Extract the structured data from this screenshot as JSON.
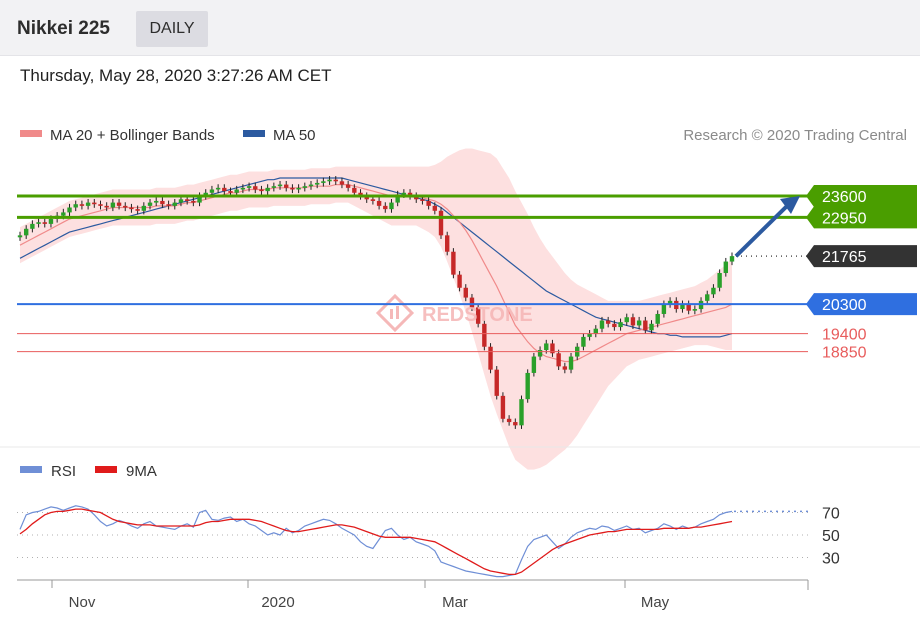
{
  "header": {
    "title": "Nikkei 225",
    "period": "DAILY",
    "datetime": "Thursday, May 28, 2020 3:27:26 AM CET"
  },
  "legend": {
    "ma20": "MA 20 + Bollinger Bands",
    "ma50": "MA 50",
    "credit": "Research © 2020 Trading Central",
    "watermark": "REDSTONE",
    "rsi": "RSI",
    "rsi_ma": "9MA"
  },
  "colors": {
    "ma20": "#f08a8a",
    "ma50": "#2c5aa0",
    "band": "#fde0e0",
    "resistance": "#4a9e00",
    "support_blue": "#2f6fe0",
    "support_red": "#e85c5c",
    "current": "#333333",
    "rsi": "#6f8fd6",
    "rsi_ma": "#e01b1b",
    "arrow": "#2c5aa0"
  },
  "chart_data": {
    "type": "line",
    "x_ticks": [
      "Nov",
      "2020",
      "Mar",
      "May"
    ],
    "levels": [
      {
        "value": 23600,
        "label": "23600",
        "kind": "resistance"
      },
      {
        "value": 22950,
        "label": "22950",
        "kind": "resistance"
      },
      {
        "value": 21765,
        "label": "21765",
        "kind": "current"
      },
      {
        "value": 20300,
        "label": "20300",
        "kind": "support_blue"
      },
      {
        "value": 19400,
        "label": "19400",
        "kind": "support_red"
      },
      {
        "value": 18850,
        "label": "18850",
        "kind": "support_red"
      }
    ],
    "price_range": [
      16000,
      24700
    ],
    "price_close": [
      22400,
      22600,
      22750,
      22800,
      22750,
      22900,
      23000,
      23100,
      23250,
      23350,
      23300,
      23400,
      23350,
      23300,
      23250,
      23400,
      23300,
      23250,
      23200,
      23150,
      23300,
      23400,
      23450,
      23350,
      23300,
      23400,
      23500,
      23450,
      23400,
      23600,
      23700,
      23800,
      23850,
      23750,
      23700,
      23800,
      23850,
      23900,
      23800,
      23750,
      23850,
      23900,
      23950,
      23850,
      23800,
      23850,
      23900,
      23950,
      24000,
      24050,
      24100,
      24050,
      23950,
      23850,
      23700,
      23600,
      23500,
      23450,
      23300,
      23200,
      23400,
      23650,
      23700,
      23600,
      23500,
      23450,
      23300,
      23150,
      22400,
      21900,
      21200,
      20800,
      20500,
      20200,
      19700,
      19000,
      18300,
      17500,
      16800,
      16700,
      16600,
      17400,
      18200,
      18700,
      18900,
      19100,
      18800,
      18400,
      18300,
      18700,
      19000,
      19300,
      19400,
      19550,
      19800,
      19700,
      19600,
      19750,
      19900,
      19650,
      19800,
      19500,
      19700,
      20000,
      20300,
      20400,
      20150,
      20300,
      20100,
      20150,
      20400,
      20600,
      20800,
      21250,
      21600,
      21765
    ],
    "ma20": [
      22100,
      22200,
      22300,
      22400,
      22500,
      22600,
      22700,
      22800,
      22900,
      22950,
      23000,
      23050,
      23100,
      23150,
      23200,
      23250,
      23250,
      23250,
      23250,
      23250,
      23250,
      23250,
      23300,
      23300,
      23300,
      23300,
      23350,
      23400,
      23400,
      23450,
      23500,
      23550,
      23600,
      23650,
      23700,
      23700,
      23750,
      23800,
      23800,
      23800,
      23800,
      23850,
      23850,
      23850,
      23850,
      23850,
      23850,
      23900,
      23900,
      23900,
      23900,
      23950,
      23950,
      23950,
      23900,
      23850,
      23800,
      23750,
      23700,
      23650,
      23600,
      23600,
      23600,
      23600,
      23600,
      23550,
      23500,
      23450,
      23350,
      23200,
      23000,
      22800,
      22550,
      22250,
      21900,
      21550,
      21200,
      20850,
      20450,
      20050,
      19650,
      19400,
      19150,
      18950,
      18800,
      18700,
      18650,
      18600,
      18550,
      18550,
      18600,
      18700,
      18800,
      18900,
      19000,
      19100,
      19200,
      19300,
      19400,
      19450,
      19500,
      19550,
      19600,
      19650,
      19700,
      19750,
      19800,
      19850,
      19900,
      19950,
      20000,
      20050,
      20100,
      20150,
      20200,
      20300
    ],
    "ma50": [
      21700,
      21800,
      21900,
      22000,
      22100,
      22200,
      22300,
      22400,
      22500,
      22550,
      22600,
      22650,
      22700,
      22750,
      22800,
      22850,
      22900,
      22950,
      23000,
      23050,
      23100,
      23150,
      23200,
      23250,
      23300,
      23350,
      23400,
      23450,
      23500,
      23550,
      23600,
      23650,
      23700,
      23750,
      23800,
      23850,
      23900,
      23950,
      24000,
      24050,
      24100,
      24100,
      24150,
      24150,
      24150,
      24150,
      24150,
      24150,
      24150,
      24150,
      24150,
      24150,
      24150,
      24100,
      24050,
      24000,
      23950,
      23900,
      23850,
      23800,
      23750,
      23700,
      23650,
      23600,
      23550,
      23500,
      23450,
      23350,
      23250,
      23100,
      22950,
      22800,
      22650,
      22500,
      22350,
      22200,
      22050,
      21900,
      21750,
      21600,
      21450,
      21300,
      21150,
      21000,
      20850,
      20700,
      20600,
      20500,
      20400,
      20300,
      20200,
      20100,
      20000,
      19900,
      19850,
      19800,
      19750,
      19700,
      19650,
      19600,
      19550,
      19500,
      19450,
      19400,
      19400,
      19350,
      19350,
      19300,
      19300,
      19300,
      19300,
      19300,
      19300,
      19300,
      19350,
      19400
    ],
    "band_width": [
      550,
      550,
      550,
      550,
      550,
      550,
      550,
      550,
      550,
      550,
      550,
      550,
      550,
      550,
      550,
      550,
      550,
      550,
      550,
      550,
      550,
      550,
      550,
      550,
      550,
      550,
      550,
      550,
      550,
      550,
      550,
      550,
      550,
      550,
      550,
      550,
      550,
      550,
      550,
      550,
      550,
      550,
      550,
      550,
      550,
      550,
      550,
      550,
      550,
      550,
      550,
      550,
      550,
      550,
      600,
      650,
      700,
      750,
      800,
      850,
      900,
      900,
      900,
      900,
      900,
      950,
      1000,
      1100,
      1300,
      1600,
      1900,
      2200,
      2500,
      2800,
      3100,
      3400,
      3700,
      3900,
      4000,
      4100,
      4100,
      4000,
      3900,
      3700,
      3500,
      3300,
      3100,
      2900,
      2700,
      2500,
      2300,
      2100,
      1900,
      1700,
      1500,
      1300,
      1200,
      1100,
      1000,
      950,
      900,
      900,
      900,
      900,
      900,
      900,
      900,
      900,
      900,
      900,
      950,
      1000,
      1100,
      1200,
      1300,
      1400
    ],
    "rsi_axis_ticks": [
      70,
      50,
      30
    ],
    "rsi_range": [
      10,
      90
    ],
    "rsi": [
      55,
      68,
      70,
      71,
      73,
      75,
      74,
      72,
      74,
      76,
      75,
      73,
      68,
      62,
      58,
      60,
      63,
      61,
      58,
      56,
      60,
      62,
      58,
      57,
      56,
      55,
      58,
      60,
      57,
      70,
      72,
      64,
      63,
      65,
      66,
      62,
      64,
      60,
      58,
      54,
      50,
      52,
      50,
      56,
      52,
      54,
      58,
      60,
      62,
      64,
      63,
      60,
      56,
      53,
      50,
      44,
      40,
      38,
      46,
      54,
      56,
      50,
      46,
      48,
      44,
      42,
      40,
      36,
      26,
      24,
      22,
      20,
      18,
      17,
      16,
      15,
      14,
      13,
      13,
      14,
      15,
      28,
      40,
      46,
      48,
      50,
      44,
      38,
      42,
      48,
      52,
      54,
      56,
      55,
      58,
      57,
      54,
      56,
      58,
      55,
      56,
      52,
      54,
      56,
      60,
      58,
      55,
      58,
      56,
      57,
      60,
      62,
      64,
      68,
      70,
      71
    ],
    "rsi_ma": [
      51,
      55,
      60,
      64,
      68,
      70,
      71,
      71,
      72,
      73,
      73,
      72,
      71,
      70,
      67,
      64,
      62,
      61,
      60,
      59,
      59,
      59,
      58,
      58,
      58,
      58,
      58,
      58,
      58,
      59,
      61,
      62,
      62,
      63,
      64,
      64,
      64,
      64,
      63,
      62,
      60,
      58,
      56,
      54,
      53,
      53,
      54,
      55,
      56,
      57,
      58,
      59,
      59,
      58,
      57,
      55,
      53,
      51,
      49,
      48,
      48,
      48,
      48,
      48,
      47,
      46,
      45,
      44,
      41,
      38,
      35,
      32,
      29,
      26,
      23,
      20,
      18,
      17,
      16,
      15,
      15,
      17,
      21,
      25,
      29,
      33,
      37,
      40,
      42,
      44,
      46,
      48,
      50,
      51,
      52,
      53,
      53,
      54,
      55,
      55,
      55,
      55,
      55,
      55,
      56,
      56,
      56,
      56,
      56,
      57,
      57,
      58,
      59,
      60,
      61,
      62
    ]
  }
}
